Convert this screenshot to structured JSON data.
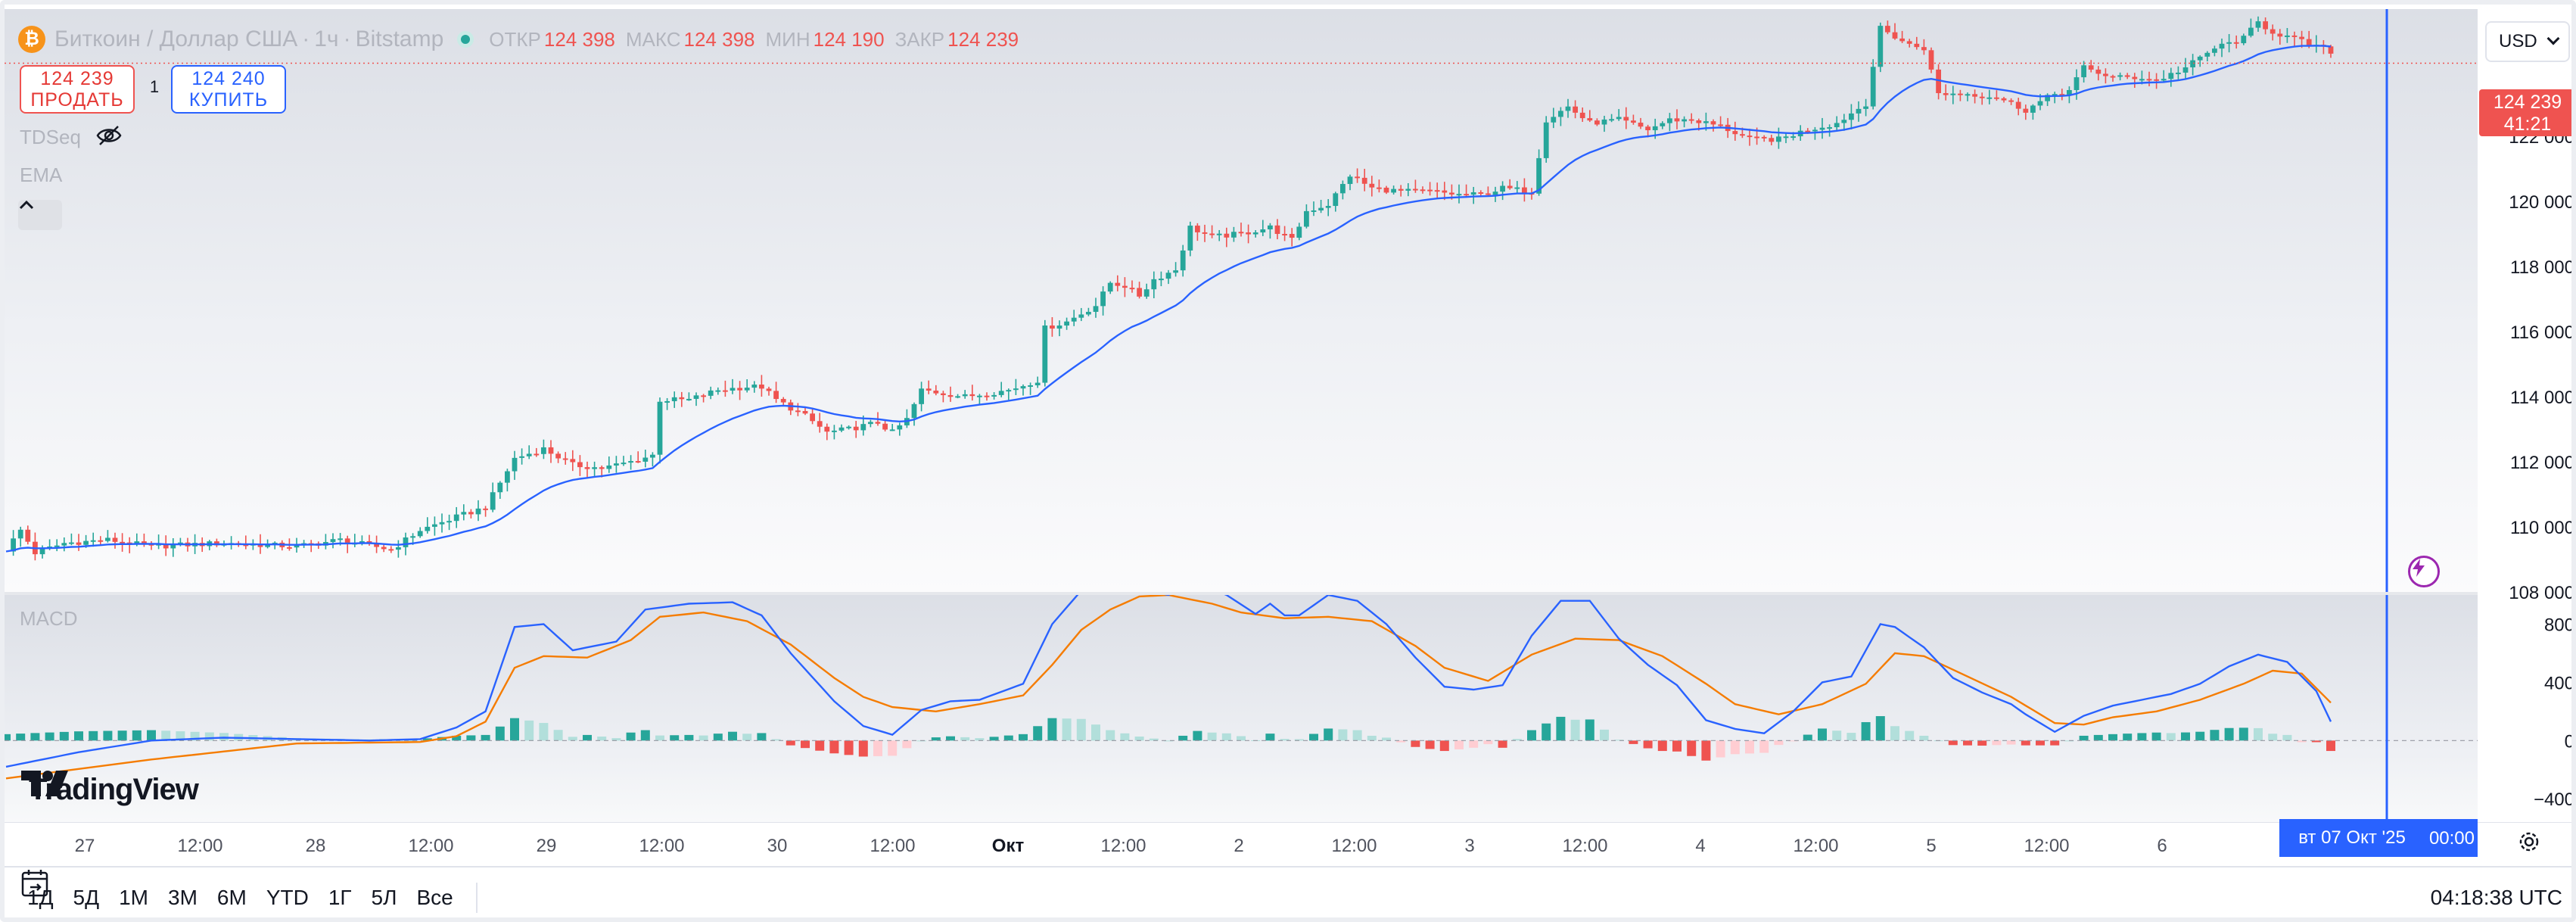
{
  "legend": {
    "coin_icon": "bitcoin-icon",
    "coin_glyph": "₿",
    "symbol": "Биткоин / Доллар США",
    "interval": "1ч",
    "exchange": "Bitstamp",
    "open_label": "ОТКР",
    "open": "124 398",
    "high_label": "МАКС",
    "high": "124 398",
    "low_label": "МИН",
    "low": "124 190",
    "close_label": "ЗАКР",
    "close": "124 239"
  },
  "trade": {
    "sell_price": "124 239",
    "sell_label": "ПРОДАТЬ",
    "spread": "1",
    "buy_price": "124 240",
    "buy_label": "КУПИТЬ"
  },
  "indicators": [
    "TDSeq",
    "EMA"
  ],
  "currency": "USD",
  "last_price": {
    "value": "124 239",
    "countdown": "41:21"
  },
  "macd_label": "MACD",
  "brand": "TradingView",
  "cursor": {
    "time_label": "вт 07 Окт '25",
    "time_right": "00:00"
  },
  "ranges": [
    "1Д",
    "5Д",
    "1М",
    "3М",
    "6М",
    "YTD",
    "1Г",
    "5Л",
    "Все"
  ],
  "clock": "04:18:38 UTC",
  "colors": {
    "up": "#26a69a",
    "down": "#ef5350",
    "ema": "#2962ff",
    "signal": "#f57c00",
    "cursor": "#2962ff"
  },
  "chart_data": [
    {
      "type": "candlestick",
      "y_ticks": [
        108000,
        110000,
        112000,
        114000,
        116000,
        118000,
        120000,
        122000
      ],
      "y_tick_labels": [
        "108 000",
        "110 000",
        "112 000",
        "114 000",
        "116 000",
        "118 000",
        "120 000",
        "122 000"
      ],
      "ylim": [
        108000,
        125900
      ],
      "x_ticks": [
        "27",
        "12:00",
        "28",
        "12:00",
        "29",
        "12:00",
        "30",
        "12:00",
        "Окт",
        "12:00",
        "2",
        "12:00",
        "3",
        "12:00",
        "4",
        "12:00",
        "5",
        "12:00",
        "6",
        "12:00"
      ],
      "x_range_hours": [
        0,
        264
      ],
      "price_path": [
        [
          0,
          109300
        ],
        [
          2,
          109900
        ],
        [
          4,
          109200
        ],
        [
          8,
          109500
        ],
        [
          14,
          109600
        ],
        [
          20,
          109400
        ],
        [
          30,
          109500
        ],
        [
          40,
          109400
        ],
        [
          46,
          109600
        ],
        [
          53,
          109300
        ],
        [
          57,
          109900
        ],
        [
          62,
          110300
        ],
        [
          66,
          110600
        ],
        [
          70,
          112100
        ],
        [
          74,
          112400
        ],
        [
          78,
          111900
        ],
        [
          82,
          111800
        ],
        [
          86,
          112000
        ],
        [
          89,
          112200
        ],
        [
          90,
          113900
        ],
        [
          94,
          113900
        ],
        [
          98,
          114200
        ],
        [
          102,
          114300
        ],
        [
          104,
          114300
        ],
        [
          106,
          113900
        ],
        [
          110,
          113400
        ],
        [
          113,
          112900
        ],
        [
          116,
          113000
        ],
        [
          120,
          113200
        ],
        [
          122,
          112900
        ],
        [
          124,
          113300
        ],
        [
          126,
          114200
        ],
        [
          132,
          114000
        ],
        [
          138,
          114200
        ],
        [
          142,
          114500
        ],
        [
          143,
          116100
        ],
        [
          146,
          116300
        ],
        [
          150,
          116800
        ],
        [
          152,
          117500
        ],
        [
          154,
          117400
        ],
        [
          156,
          117100
        ],
        [
          158,
          117600
        ],
        [
          161,
          117900
        ],
        [
          163,
          119200
        ],
        [
          166,
          118900
        ],
        [
          170,
          119000
        ],
        [
          174,
          119200
        ],
        [
          177,
          118800
        ],
        [
          179,
          119700
        ],
        [
          182,
          119900
        ],
        [
          185,
          120800
        ],
        [
          188,
          120400
        ],
        [
          192,
          120300
        ],
        [
          196,
          120300
        ],
        [
          200,
          120200
        ],
        [
          203,
          120200
        ],
        [
          206,
          120400
        ],
        [
          210,
          120300
        ],
        [
          212,
          122500
        ],
        [
          215,
          122900
        ],
        [
          218,
          122400
        ],
        [
          222,
          122500
        ],
        [
          226,
          122200
        ],
        [
          229,
          122500
        ],
        [
          232,
          122500
        ],
        [
          236,
          122300
        ],
        [
          240,
          121900
        ],
        [
          244,
          121900
        ],
        [
          248,
          122200
        ],
        [
          252,
          122400
        ],
        [
          256,
          123000
        ],
        [
          258,
          125300
        ],
        [
          262,
          124800
        ],
        [
          264,
          124700
        ],
        [
          266,
          123300
        ],
        [
          270,
          123300
        ],
        [
          274,
          123200
        ],
        [
          278,
          122800
        ],
        [
          282,
          123300
        ],
        [
          284,
          123400
        ],
        [
          286,
          124100
        ],
        [
          290,
          123800
        ],
        [
          294,
          123800
        ],
        [
          296,
          123700
        ],
        [
          300,
          124100
        ],
        [
          304,
          124700
        ],
        [
          308,
          125000
        ],
        [
          310,
          125500
        ],
        [
          312,
          125200
        ],
        [
          316,
          124900
        ],
        [
          320,
          124600
        ]
      ],
      "current_price": 124239,
      "series": [
        {
          "name": "EMA"
        }
      ]
    },
    {
      "type": "macd",
      "y_ticks": [
        -400,
        0,
        400,
        800
      ],
      "y_tick_labels": [
        "−400",
        "0",
        "400",
        "800"
      ],
      "ylim": [
        -560,
        1000
      ],
      "macd_path": [
        [
          0,
          -180
        ],
        [
          10,
          -80
        ],
        [
          20,
          0
        ],
        [
          30,
          20
        ],
        [
          40,
          10
        ],
        [
          50,
          0
        ],
        [
          57,
          10
        ],
        [
          62,
          90
        ],
        [
          66,
          200
        ],
        [
          70,
          780
        ],
        [
          74,
          800
        ],
        [
          78,
          620
        ],
        [
          84,
          680
        ],
        [
          88,
          900
        ],
        [
          94,
          940
        ],
        [
          100,
          950
        ],
        [
          104,
          860
        ],
        [
          108,
          600
        ],
        [
          114,
          270
        ],
        [
          118,
          100
        ],
        [
          122,
          40
        ],
        [
          126,
          210
        ],
        [
          130,
          270
        ],
        [
          134,
          280
        ],
        [
          140,
          390
        ],
        [
          144,
          800
        ],
        [
          148,
          1030
        ],
        [
          152,
          1030
        ],
        [
          156,
          1040
        ],
        [
          160,
          1000
        ],
        [
          164,
          1080
        ],
        [
          168,
          1000
        ],
        [
          172,
          870
        ],
        [
          174,
          940
        ],
        [
          176,
          860
        ],
        [
          178,
          860
        ],
        [
          182,
          1000
        ],
        [
          186,
          960
        ],
        [
          190,
          800
        ],
        [
          194,
          570
        ],
        [
          198,
          370
        ],
        [
          202,
          350
        ],
        [
          206,
          380
        ],
        [
          210,
          720
        ],
        [
          214,
          960
        ],
        [
          218,
          960
        ],
        [
          222,
          700
        ],
        [
          226,
          520
        ],
        [
          230,
          380
        ],
        [
          234,
          140
        ],
        [
          238,
          80
        ],
        [
          242,
          50
        ],
        [
          246,
          200
        ],
        [
          250,
          400
        ],
        [
          254,
          440
        ],
        [
          258,
          800
        ],
        [
          260,
          780
        ],
        [
          264,
          640
        ],
        [
          268,
          430
        ],
        [
          272,
          330
        ],
        [
          276,
          250
        ],
        [
          278,
          180
        ],
        [
          282,
          60
        ],
        [
          286,
          170
        ],
        [
          290,
          240
        ],
        [
          294,
          280
        ],
        [
          298,
          320
        ],
        [
          302,
          390
        ],
        [
          306,
          510
        ],
        [
          310,
          590
        ],
        [
          314,
          540
        ],
        [
          318,
          340
        ],
        [
          320,
          130
        ]
      ],
      "signal_path": [
        [
          0,
          -260
        ],
        [
          20,
          -130
        ],
        [
          40,
          -20
        ],
        [
          57,
          -10
        ],
        [
          62,
          30
        ],
        [
          66,
          130
        ],
        [
          70,
          500
        ],
        [
          74,
          580
        ],
        [
          80,
          570
        ],
        [
          86,
          690
        ],
        [
          90,
          850
        ],
        [
          96,
          880
        ],
        [
          102,
          820
        ],
        [
          108,
          660
        ],
        [
          114,
          430
        ],
        [
          118,
          300
        ],
        [
          122,
          230
        ],
        [
          128,
          200
        ],
        [
          134,
          250
        ],
        [
          140,
          310
        ],
        [
          144,
          520
        ],
        [
          148,
          760
        ],
        [
          152,
          900
        ],
        [
          156,
          990
        ],
        [
          160,
          1000
        ],
        [
          166,
          940
        ],
        [
          170,
          880
        ],
        [
          176,
          840
        ],
        [
          182,
          850
        ],
        [
          188,
          820
        ],
        [
          194,
          650
        ],
        [
          198,
          500
        ],
        [
          204,
          410
        ],
        [
          210,
          590
        ],
        [
          216,
          700
        ],
        [
          222,
          690
        ],
        [
          228,
          580
        ],
        [
          234,
          390
        ],
        [
          238,
          250
        ],
        [
          244,
          180
        ],
        [
          250,
          250
        ],
        [
          256,
          390
        ],
        [
          260,
          600
        ],
        [
          264,
          580
        ],
        [
          270,
          440
        ],
        [
          276,
          300
        ],
        [
          282,
          120
        ],
        [
          286,
          110
        ],
        [
          290,
          160
        ],
        [
          296,
          200
        ],
        [
          302,
          280
        ],
        [
          308,
          390
        ],
        [
          312,
          480
        ],
        [
          316,
          460
        ],
        [
          320,
          260
        ]
      ],
      "series": [
        {
          "name": "MACD"
        }
      ]
    }
  ]
}
